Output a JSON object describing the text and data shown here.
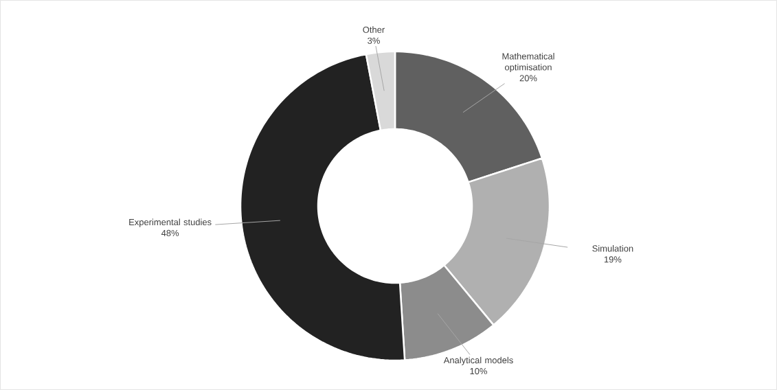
{
  "chart_data": {
    "type": "donut",
    "categories": [
      "Mathematical optimisation",
      "Simulation",
      "Analytical models",
      "Experimental studies",
      "Other"
    ],
    "values": [
      20,
      19,
      10,
      48,
      3
    ],
    "value_labels": [
      "20%",
      "19%",
      "10%",
      "48%",
      "3%"
    ],
    "colors": [
      "#606060",
      "#b0b0b0",
      "#8c8c8c",
      "#222222",
      "#d9d9d9"
    ]
  }
}
